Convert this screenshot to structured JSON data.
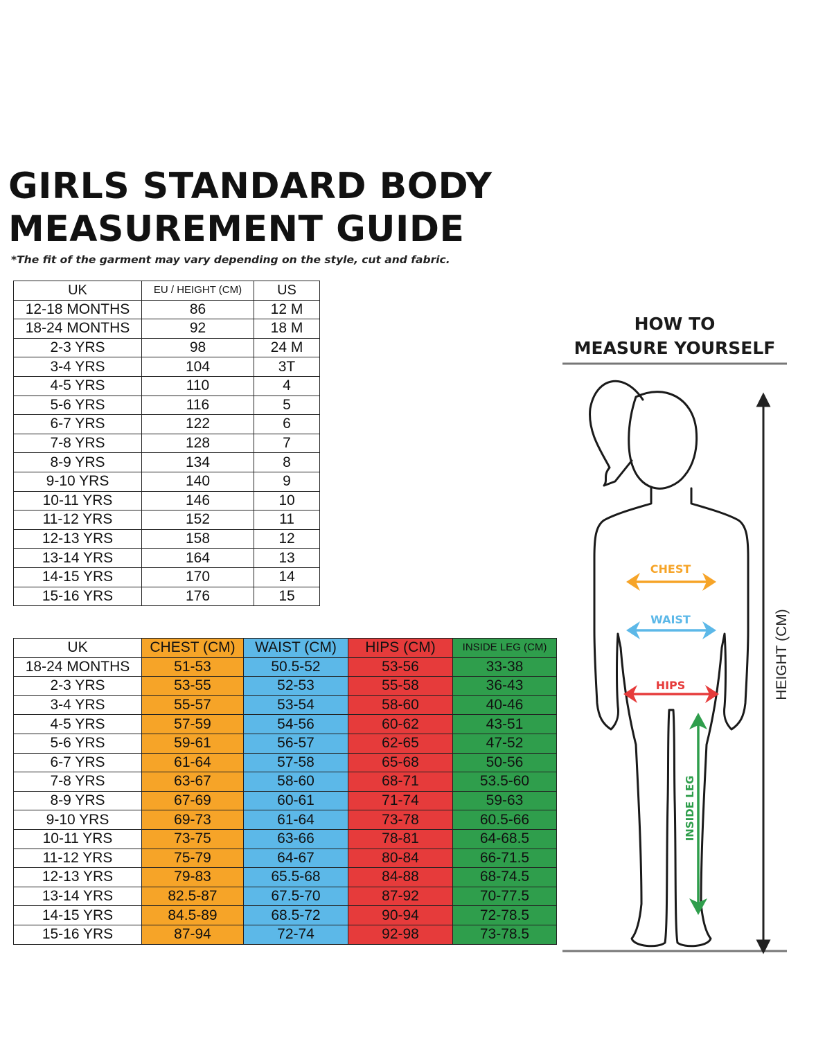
{
  "title": {
    "line1": "GIRLS STANDARD BODY",
    "line2": "MEASUREMENT GUIDE"
  },
  "disclaimer": "*The fit of the garment may vary depending on the style, cut and fabric.",
  "size_table": {
    "headers": [
      "UK",
      "EU / HEIGHT (CM)",
      "US"
    ],
    "rows": [
      [
        "12-18 MONTHS",
        "86",
        "12 M"
      ],
      [
        "18-24 MONTHS",
        "92",
        "18 M"
      ],
      [
        "2-3 YRS",
        "98",
        "24 M"
      ],
      [
        "3-4 YRS",
        "104",
        "3T"
      ],
      [
        "4-5 YRS",
        "110",
        "4"
      ],
      [
        "5-6 YRS",
        "116",
        "5"
      ],
      [
        "6-7 YRS",
        "122",
        "6"
      ],
      [
        "7-8 YRS",
        "128",
        "7"
      ],
      [
        "8-9 YRS",
        "134",
        "8"
      ],
      [
        "9-10 YRS",
        "140",
        "9"
      ],
      [
        "10-11 YRS",
        "146",
        "10"
      ],
      [
        "11-12 YRS",
        "152",
        "11"
      ],
      [
        "12-13 YRS",
        "158",
        "12"
      ],
      [
        "13-14 YRS",
        "164",
        "13"
      ],
      [
        "14-15 YRS",
        "170",
        "14"
      ],
      [
        "15-16 YRS",
        "176",
        "15"
      ]
    ]
  },
  "measurement_table": {
    "headers": [
      "UK",
      "CHEST (CM)",
      "WAIST (CM)",
      "HIPS (CM)",
      "INSIDE LEG (CM)"
    ],
    "rows": [
      [
        "18-24 MONTHS",
        "51-53",
        "50.5-52",
        "53-56",
        "33-38"
      ],
      [
        "2-3 YRS",
        "53-55",
        "52-53",
        "55-58",
        "36-43"
      ],
      [
        "3-4 YRS",
        "55-57",
        "53-54",
        "58-60",
        "40-46"
      ],
      [
        "4-5 YRS",
        "57-59",
        "54-56",
        "60-62",
        "43-51"
      ],
      [
        "5-6 YRS",
        "59-61",
        "56-57",
        "62-65",
        "47-52"
      ],
      [
        "6-7 YRS",
        "61-64",
        "57-58",
        "65-68",
        "50-56"
      ],
      [
        "7-8 YRS",
        "63-67",
        "58-60",
        "68-71",
        "53.5-60"
      ],
      [
        "8-9 YRS",
        "67-69",
        "60-61",
        "71-74",
        "59-63"
      ],
      [
        "9-10 YRS",
        "69-73",
        "61-64",
        "73-78",
        "60.5-66"
      ],
      [
        "10-11 YRS",
        "73-75",
        "63-66",
        "78-81",
        "64-68.5"
      ],
      [
        "11-12 YRS",
        "75-79",
        "64-67",
        "80-84",
        "66-71.5"
      ],
      [
        "12-13 YRS",
        "79-83",
        "65.5-68",
        "84-88",
        "68-74.5"
      ],
      [
        "13-14 YRS",
        "82.5-87",
        "67.5-70",
        "87-92",
        "70-77.5"
      ],
      [
        "14-15 YRS",
        "84.5-89",
        "68.5-72",
        "90-94",
        "72-78.5"
      ],
      [
        "15-16 YRS",
        "87-94",
        "72-74",
        "92-98",
        "73-78.5"
      ]
    ]
  },
  "how_to": {
    "line1": "HOW TO",
    "line2": "MEASURE YOURSELF"
  },
  "figure_labels": {
    "chest": "CHEST",
    "waist": "WAIST",
    "hips": "HIPS",
    "inside_leg": "INSIDE LEG",
    "height": "HEIGHT (CM)"
  },
  "colors": {
    "chest": "#f6a428",
    "waist": "#5cb8e8",
    "hips": "#e63b3b",
    "inside_leg": "#2f9e4c"
  }
}
